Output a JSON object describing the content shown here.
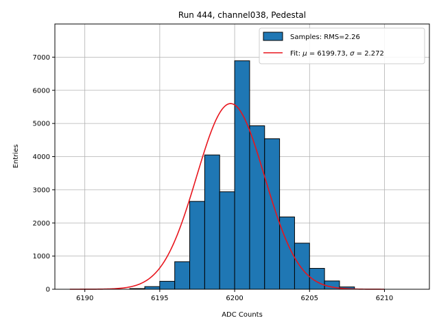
{
  "chart_data": {
    "type": "bar",
    "title": "Run 444, channel038, Pedestal",
    "xlabel": "ADC Counts",
    "ylabel": "Entries",
    "xlim": [
      6188,
      6213
    ],
    "ylim": [
      0,
      8000
    ],
    "xticks": [
      6190,
      6195,
      6200,
      6205,
      6210
    ],
    "yticks": [
      0,
      1000,
      2000,
      3000,
      4000,
      5000,
      6000,
      7000
    ],
    "grid": true,
    "legend_position": "top-right",
    "bin_width": 1,
    "histogram": {
      "bin_edges": [
        6193,
        6194,
        6195,
        6196,
        6197,
        6198,
        6199,
        6200,
        6201,
        6202,
        6203,
        6204,
        6205,
        6206,
        6207
      ],
      "counts": [
        20,
        80,
        240,
        830,
        2650,
        4050,
        2940,
        6890,
        4930,
        4540,
        2180,
        1390,
        630,
        250,
        70
      ],
      "color": "#1f77b4"
    },
    "fit": {
      "mu": 6199.73,
      "sigma": 2.272,
      "peak": 5600,
      "x_range": [
        6189,
        6210
      ],
      "color": "#e8141c"
    },
    "legend": {
      "samples": "Samples: RMS=2.26",
      "fit_prefix": "Fit: ",
      "fit_mu": "μ",
      "fit_mid": " = 6199.73, ",
      "fit_sigma": "σ",
      "fit_suffix": " = 2.272"
    }
  }
}
